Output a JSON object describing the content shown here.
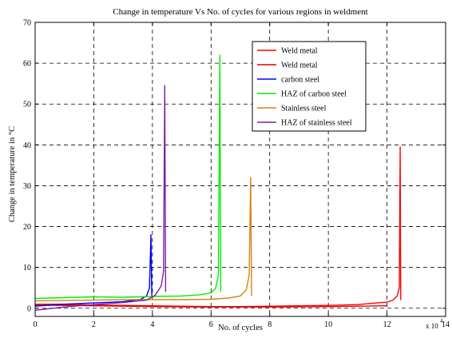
{
  "chart_data": {
    "type": "line",
    "title": "Change in temperature Vs No. of cycles for various regions in weldment",
    "xlabel": "No. of cycles",
    "ylabel": "Change in temperature in °C",
    "x_multiplier_label": "x 10",
    "x_multiplier_exponent": "4",
    "xlim": [
      0,
      14
    ],
    "ylim": [
      -2,
      70
    ],
    "x_ticks": [
      "0",
      "2",
      "4",
      "6",
      "8",
      "10",
      "12",
      "14"
    ],
    "y_ticks": [
      "0",
      "10",
      "20",
      "30",
      "40",
      "50",
      "60",
      "70"
    ],
    "x_tick_values": [
      0,
      2,
      4,
      6,
      8,
      10,
      12,
      14
    ],
    "y_tick_values": [
      0,
      10,
      20,
      30,
      40,
      50,
      60,
      70
    ],
    "grid": true,
    "grid_style": "dashed",
    "legend_position": "top-right",
    "series": [
      {
        "name": "Weld metal",
        "color": "#ff0000",
        "points": [
          [
            0,
            1.0
          ],
          [
            1,
            1.0
          ],
          [
            2,
            0.8
          ],
          [
            3,
            0.7
          ],
          [
            4,
            0.6
          ],
          [
            5,
            0.5
          ],
          [
            6,
            0.4
          ],
          [
            7,
            0.4
          ],
          [
            8,
            0.5
          ],
          [
            9,
            0.6
          ],
          [
            10,
            0.7
          ],
          [
            11,
            0.9
          ],
          [
            11.5,
            1.2
          ],
          [
            12,
            1.5
          ],
          [
            12.2,
            2.0
          ],
          [
            12.35,
            3.0
          ],
          [
            12.42,
            5.0
          ],
          [
            12.45,
            39.5
          ],
          [
            12.47,
            2.0
          ]
        ]
      },
      {
        "name": "Weld metal",
        "color": "#dd0000",
        "points": [
          [
            0,
            0.8
          ],
          [
            2,
            0.6
          ],
          [
            4,
            0.4
          ],
          [
            6,
            0.3
          ],
          [
            8,
            0.3
          ],
          [
            10,
            0.4
          ],
          [
            12,
            0.6
          ]
        ]
      },
      {
        "name": "carbon steel",
        "color": "#0000ff",
        "points": [
          [
            0,
            0.5
          ],
          [
            1,
            1.0
          ],
          [
            2,
            1.3
          ],
          [
            3,
            1.6
          ],
          [
            3.6,
            2.2
          ],
          [
            3.8,
            3.0
          ],
          [
            3.9,
            5.0
          ],
          [
            3.95,
            18.0
          ],
          [
            3.98,
            3.0
          ]
        ]
      },
      {
        "name": "HAZ of carbon steel",
        "color": "#00ee00",
        "points": [
          [
            0,
            2.4
          ],
          [
            1,
            2.6
          ],
          [
            2,
            2.8
          ],
          [
            3,
            2.7
          ],
          [
            4,
            2.9
          ],
          [
            5,
            3.0
          ],
          [
            5.6,
            3.3
          ],
          [
            6,
            3.8
          ],
          [
            6.15,
            4.8
          ],
          [
            6.25,
            8.0
          ],
          [
            6.3,
            62.0
          ],
          [
            6.33,
            4.0
          ]
        ]
      },
      {
        "name": "Stainless steel",
        "color": "#d8820e",
        "points": [
          [
            0,
            1.8
          ],
          [
            1,
            1.9
          ],
          [
            2,
            2.0
          ],
          [
            3,
            2.1
          ],
          [
            4,
            2.1
          ],
          [
            5,
            2.1
          ],
          [
            6,
            2.2
          ],
          [
            6.6,
            2.5
          ],
          [
            7,
            3.0
          ],
          [
            7.2,
            4.5
          ],
          [
            7.3,
            8.0
          ],
          [
            7.35,
            32.0
          ],
          [
            7.38,
            3.0
          ]
        ]
      },
      {
        "name": "HAZ of stainless steel",
        "color": "#7b1fa2",
        "points": [
          [
            0,
            -0.5
          ],
          [
            1,
            0.3
          ],
          [
            2,
            0.9
          ],
          [
            3,
            1.4
          ],
          [
            3.8,
            2.0
          ],
          [
            4.1,
            3.2
          ],
          [
            4.3,
            5.5
          ],
          [
            4.38,
            9.0
          ],
          [
            4.42,
            54.5
          ],
          [
            4.45,
            4.0
          ]
        ]
      }
    ]
  }
}
